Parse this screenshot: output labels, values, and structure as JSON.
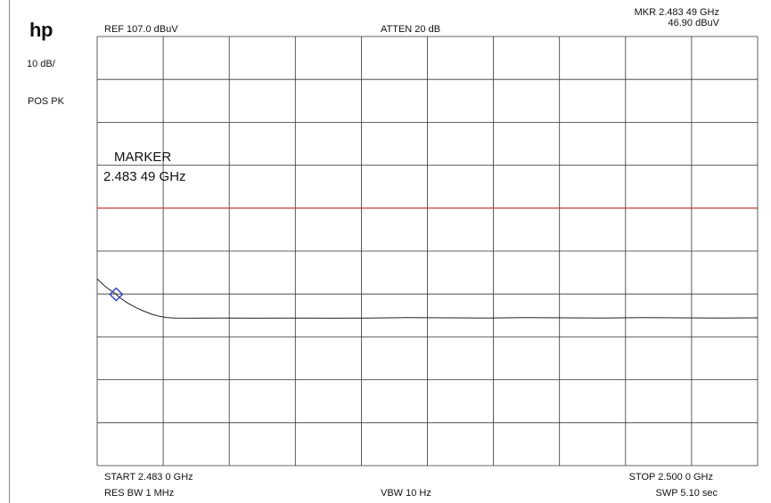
{
  "header": {
    "logo": "hp",
    "ref": "REF 107.0 dBuV",
    "atten": "ATTEN 20 dB",
    "mkr_freq": "MKR 2.483 49 GHz",
    "mkr_level": "46.90 dBuV"
  },
  "left_panel": {
    "scale": "10 dB/",
    "detector": "POS PK"
  },
  "marker_annotation": {
    "title": "MARKER",
    "freq": "2.483 49 GHz"
  },
  "footer": {
    "start": "START 2.483 0 GHz",
    "stop": "STOP 2.500 0 GHz",
    "res_bw": "RES BW 1 MHz",
    "vbw": "VBW 10  Hz",
    "swp": "SWP 5.10  sec"
  },
  "chart_data": {
    "type": "line",
    "x_range_ghz": [
      2.483,
      2.5
    ],
    "y_range_dbuv": [
      7.0,
      107.0
    ],
    "grid": true,
    "grid_divisions": {
      "x": 10,
      "y": 10
    },
    "limit_line": {
      "level_dbuv": 67.0,
      "color": "#e03030"
    },
    "trace": {
      "color": "#222222",
      "points": [
        [
          2.483,
          50.5
        ],
        [
          2.4832,
          48.8
        ],
        [
          2.4834,
          47.5
        ],
        [
          2.48349,
          46.9
        ],
        [
          2.4836,
          46.0
        ],
        [
          2.4838,
          44.8
        ],
        [
          2.484,
          43.8
        ],
        [
          2.4842,
          43.0
        ],
        [
          2.4844,
          42.3
        ],
        [
          2.4846,
          41.8
        ],
        [
          2.4848,
          41.5
        ],
        [
          2.485,
          41.4
        ],
        [
          2.4855,
          41.35
        ],
        [
          2.486,
          41.4
        ],
        [
          2.487,
          41.35
        ],
        [
          2.488,
          41.4
        ],
        [
          2.489,
          41.35
        ],
        [
          2.49,
          41.4
        ],
        [
          2.491,
          41.5
        ],
        [
          2.492,
          41.45
        ],
        [
          2.493,
          41.4
        ],
        [
          2.494,
          41.5
        ],
        [
          2.495,
          41.45
        ],
        [
          2.496,
          41.4
        ],
        [
          2.497,
          41.5
        ],
        [
          2.498,
          41.45
        ],
        [
          2.499,
          41.4
        ],
        [
          2.5,
          41.45
        ]
      ]
    },
    "marker": {
      "x_ghz": 2.48349,
      "y_dbuv": 46.9,
      "color": "#2a3fd0"
    }
  }
}
